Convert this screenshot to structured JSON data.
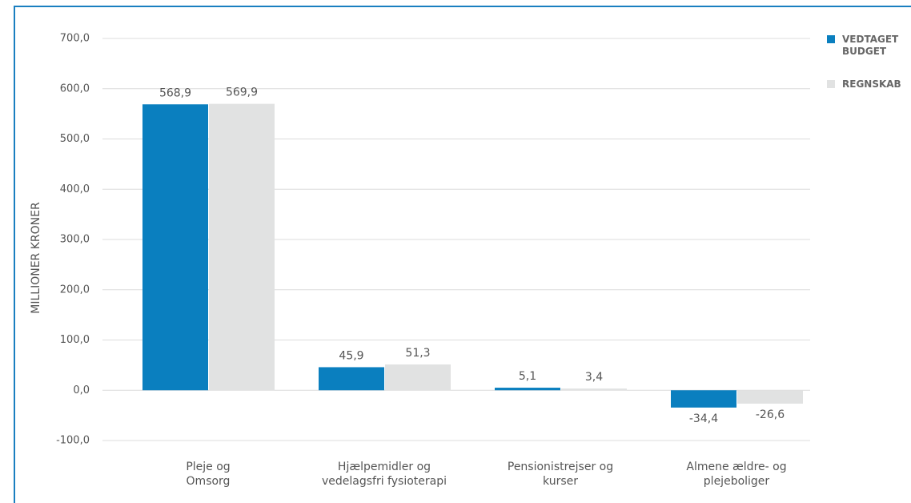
{
  "chart_data": {
    "type": "bar",
    "y_label": "MILLIONER KRONER",
    "categories": [
      "Pleje og\nOmsorg",
      "Hjælpemidler og\nvedelagsfri fysioterapi",
      "Pensionistrejser og\nkurser",
      "Almene ældre- og\nplejeboliger"
    ],
    "series": [
      {
        "name": "VEDTAGET\nBUDGET",
        "color": "#0a7fbf",
        "values": [
          568.9,
          45.9,
          5.1,
          -34.4
        ],
        "value_labels": [
          "568,9",
          "45,9",
          "5,1",
          "-34,4"
        ]
      },
      {
        "name": "REGNSKAB",
        "color": "#e1e2e2",
        "values": [
          569.9,
          51.3,
          3.4,
          -26.6
        ],
        "value_labels": [
          "569,9",
          "51,3",
          "3,4",
          "-26,6"
        ]
      }
    ],
    "ylim": [
      -100,
      700
    ],
    "yticks": [
      {
        "value": -100,
        "label": "-100,0"
      },
      {
        "value": 0,
        "label": "0,0"
      },
      {
        "value": 100,
        "label": "100,0"
      },
      {
        "value": 200,
        "label": "200,0"
      },
      {
        "value": 300,
        "label": "300,0"
      },
      {
        "value": 400,
        "label": "400,0"
      },
      {
        "value": 500,
        "label": "500,0"
      },
      {
        "value": 600,
        "label": "600,0"
      },
      {
        "value": 700,
        "label": "700,0"
      }
    ],
    "grid": true
  }
}
